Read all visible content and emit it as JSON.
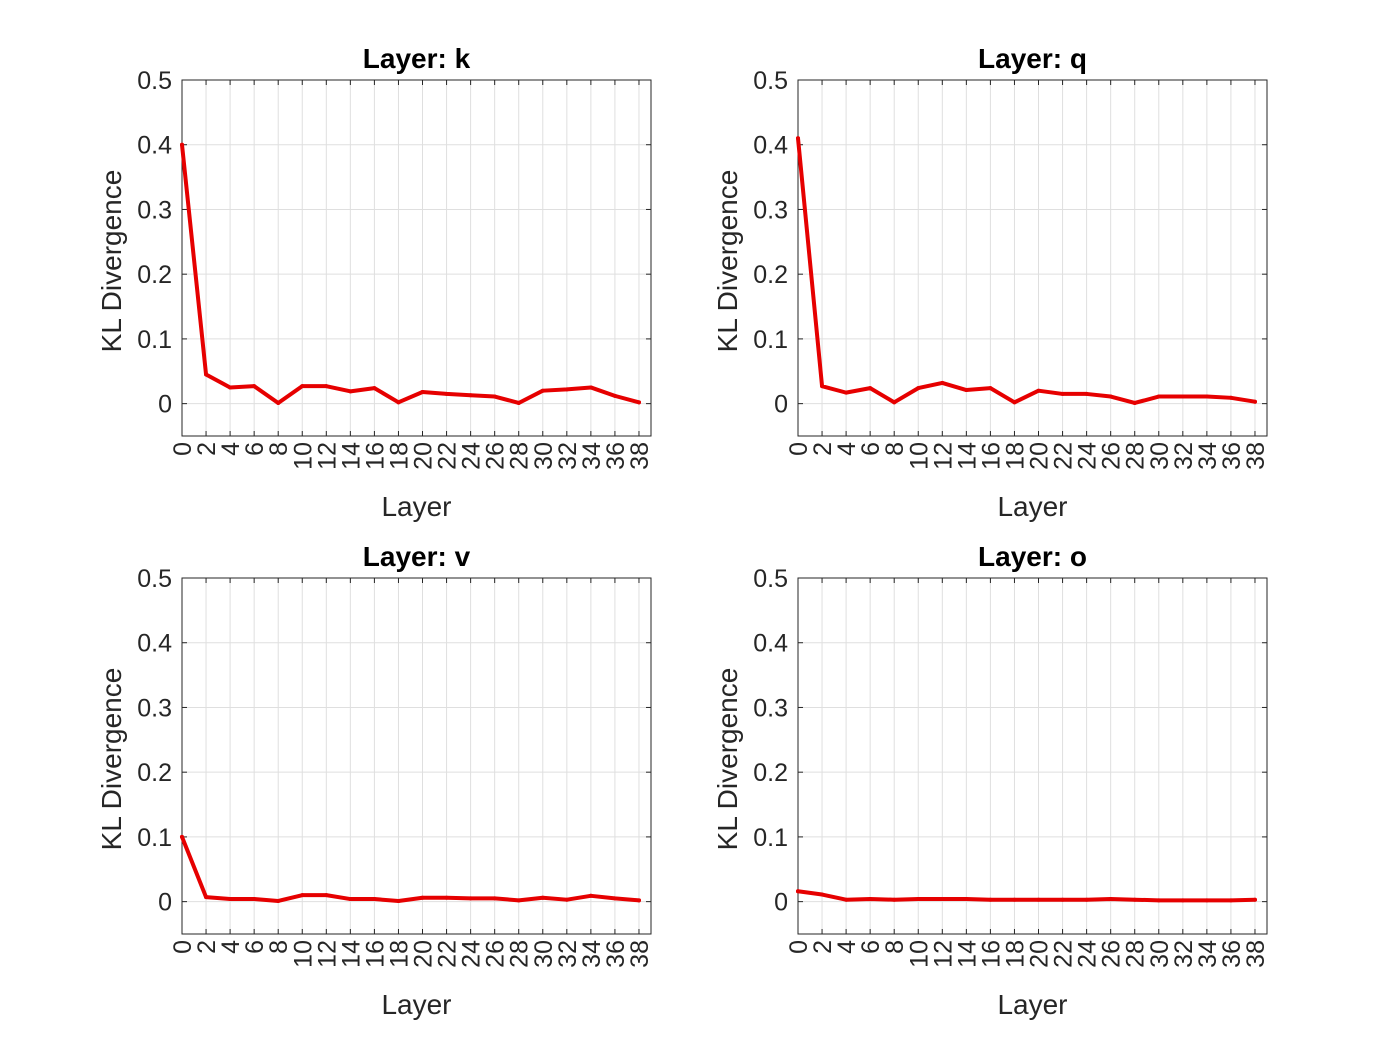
{
  "chart_data": [
    {
      "type": "line",
      "title": "Layer: k",
      "xlabel": "Layer",
      "ylabel": "KL Divergence",
      "xlim": [
        0,
        39
      ],
      "ylim": [
        -0.05,
        0.5
      ],
      "xticks": [
        "0",
        "2",
        "4",
        "6",
        "8",
        "10",
        "12",
        "14",
        "16",
        "18",
        "20",
        "22",
        "24",
        "26",
        "28",
        "30",
        "32",
        "34",
        "36",
        "38"
      ],
      "yticks": [
        "0",
        "0.1",
        "0.2",
        "0.3",
        "0.4",
        "0.5"
      ],
      "grid": true,
      "series": [
        {
          "color": "#e60000",
          "x": [
            0,
            2,
            4,
            6,
            8,
            10,
            12,
            14,
            16,
            18,
            20,
            22,
            24,
            26,
            28,
            30,
            32,
            34,
            36,
            38
          ],
          "values": [
            0.4,
            0.045,
            0.025,
            0.027,
            0.001,
            0.027,
            0.027,
            0.019,
            0.024,
            0.002,
            0.018,
            0.015,
            0.013,
            0.011,
            0.001,
            0.02,
            0.022,
            0.025,
            0.012,
            0.002
          ]
        }
      ]
    },
    {
      "type": "line",
      "title": "Layer: q",
      "xlabel": "Layer",
      "ylabel": "KL Divergence",
      "xlim": [
        0,
        39
      ],
      "ylim": [
        -0.05,
        0.5
      ],
      "xticks": [
        "0",
        "2",
        "4",
        "6",
        "8",
        "10",
        "12",
        "14",
        "16",
        "18",
        "20",
        "22",
        "24",
        "26",
        "28",
        "30",
        "32",
        "34",
        "36",
        "38"
      ],
      "yticks": [
        "0",
        "0.1",
        "0.2",
        "0.3",
        "0.4",
        "0.5"
      ],
      "grid": true,
      "series": [
        {
          "color": "#e60000",
          "x": [
            0,
            2,
            4,
            6,
            8,
            10,
            12,
            14,
            16,
            18,
            20,
            22,
            24,
            26,
            28,
            30,
            32,
            34,
            36,
            38
          ],
          "values": [
            0.41,
            0.027,
            0.017,
            0.024,
            0.002,
            0.024,
            0.032,
            0.021,
            0.024,
            0.002,
            0.02,
            0.015,
            0.015,
            0.011,
            0.001,
            0.011,
            0.011,
            0.011,
            0.009,
            0.003
          ]
        }
      ]
    },
    {
      "type": "line",
      "title": "Layer: v",
      "xlabel": "Layer",
      "ylabel": "KL Divergence",
      "xlim": [
        0,
        39
      ],
      "ylim": [
        -0.05,
        0.5
      ],
      "xticks": [
        "0",
        "2",
        "4",
        "6",
        "8",
        "10",
        "12",
        "14",
        "16",
        "18",
        "20",
        "22",
        "24",
        "26",
        "28",
        "30",
        "32",
        "34",
        "36",
        "38"
      ],
      "yticks": [
        "0",
        "0.1",
        "0.2",
        "0.3",
        "0.4",
        "0.5"
      ],
      "grid": true,
      "series": [
        {
          "color": "#e60000",
          "x": [
            0,
            2,
            4,
            6,
            8,
            10,
            12,
            14,
            16,
            18,
            20,
            22,
            24,
            26,
            28,
            30,
            32,
            34,
            36,
            38
          ],
          "values": [
            0.1,
            0.007,
            0.004,
            0.004,
            0.001,
            0.01,
            0.01,
            0.004,
            0.004,
            0.001,
            0.006,
            0.006,
            0.005,
            0.005,
            0.002,
            0.006,
            0.003,
            0.009,
            0.005,
            0.002
          ]
        }
      ]
    },
    {
      "type": "line",
      "title": "Layer: o",
      "xlabel": "Layer",
      "ylabel": "KL Divergence",
      "xlim": [
        0,
        39
      ],
      "ylim": [
        -0.05,
        0.5
      ],
      "xticks": [
        "0",
        "2",
        "4",
        "6",
        "8",
        "10",
        "12",
        "14",
        "16",
        "18",
        "20",
        "22",
        "24",
        "26",
        "28",
        "30",
        "32",
        "34",
        "36",
        "38"
      ],
      "yticks": [
        "0",
        "0.1",
        "0.2",
        "0.3",
        "0.4",
        "0.5"
      ],
      "grid": true,
      "series": [
        {
          "color": "#e60000",
          "x": [
            0,
            2,
            4,
            6,
            8,
            10,
            12,
            14,
            16,
            18,
            20,
            22,
            24,
            26,
            28,
            30,
            32,
            34,
            36,
            38
          ],
          "values": [
            0.016,
            0.011,
            0.003,
            0.004,
            0.003,
            0.004,
            0.004,
            0.004,
            0.003,
            0.003,
            0.003,
            0.003,
            0.003,
            0.004,
            0.003,
            0.002,
            0.002,
            0.002,
            0.002,
            0.003
          ]
        }
      ]
    }
  ]
}
